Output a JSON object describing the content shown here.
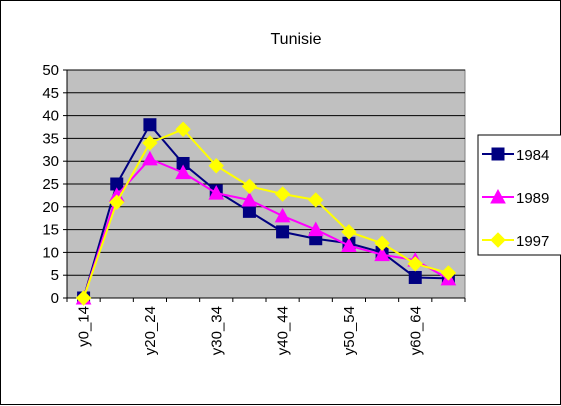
{
  "chart_data": {
    "type": "line",
    "title": "Tunisie",
    "xlabel": "",
    "ylabel": "",
    "ylim": [
      0,
      50
    ],
    "yticks": [
      0,
      5,
      10,
      15,
      20,
      25,
      30,
      35,
      40,
      45,
      50
    ],
    "grid": true,
    "legend_position": "right",
    "plot_background": "#c0c0c0",
    "categories": [
      "y0_14",
      "",
      "y20_24",
      "",
      "y30_34",
      "",
      "y40_44",
      "",
      "y50_54",
      "",
      "y60_64",
      ""
    ],
    "tick_labels": [
      "y0_14",
      "y20_24",
      "y30_34",
      "y40_44",
      "y50_54",
      "y60_64"
    ],
    "series": [
      {
        "name": "1984",
        "color": "#000080",
        "marker": "square",
        "values": [
          0,
          25,
          38,
          29.5,
          23.5,
          19,
          14.5,
          13,
          12,
          10,
          4.5,
          4.3
        ]
      },
      {
        "name": "1989",
        "color": "#ff00ff",
        "marker": "triangle",
        "values": [
          0,
          22.5,
          30.5,
          27.5,
          23,
          21.5,
          18,
          15,
          11.5,
          9.5,
          8.3,
          4.2
        ]
      },
      {
        "name": "1997",
        "color": "#ffff00",
        "marker": "diamond",
        "values": [
          0,
          21,
          34,
          37,
          29,
          24.5,
          22.8,
          21.5,
          14.5,
          12,
          7.5,
          5.5
        ]
      }
    ]
  }
}
